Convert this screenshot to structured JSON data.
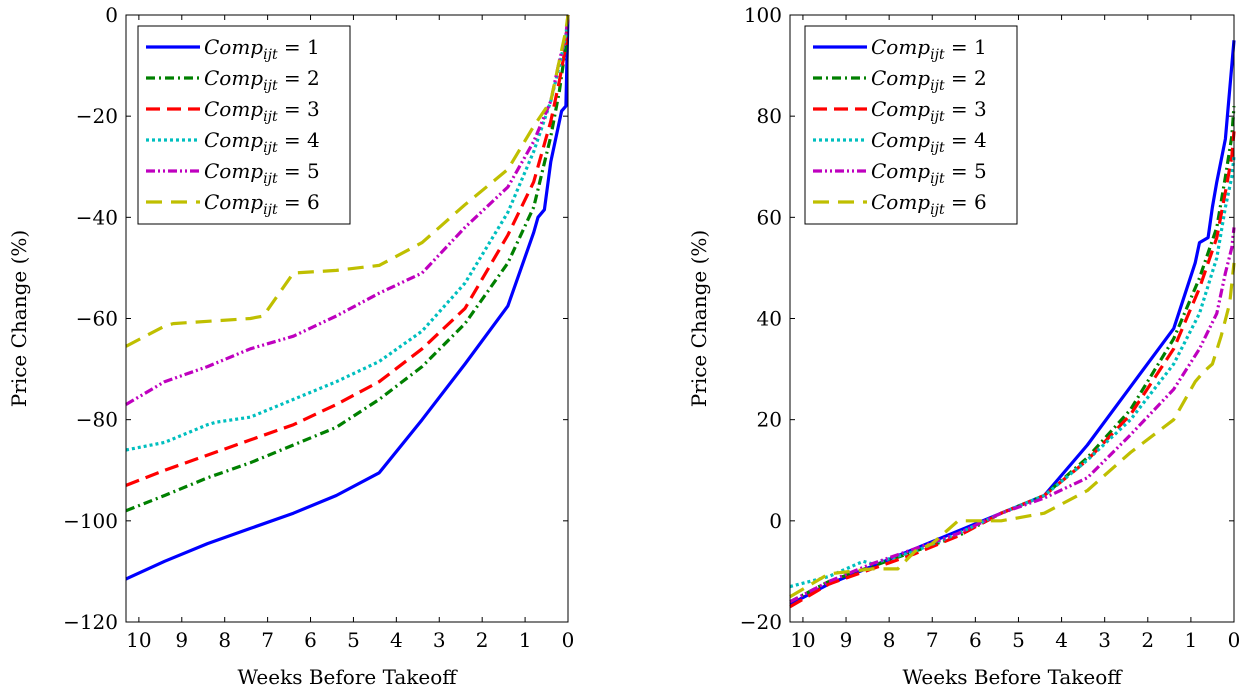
{
  "chart_data": [
    {
      "type": "line",
      "xlabel": "Weeks Before Takeoff",
      "ylabel": "Price Change (%)",
      "xlim": [
        10.3,
        0
      ],
      "ylim": [
        -120,
        0
      ],
      "xticks": [
        10,
        9,
        8,
        7,
        6,
        5,
        4,
        3,
        2,
        1,
        0
      ],
      "yticks": [
        0,
        -20,
        -40,
        -60,
        -80,
        -100,
        -120
      ],
      "legend_position": "top-left",
      "grid": false,
      "series": [
        {
          "name": "Comp_ijt = 1",
          "color": "#0000ff",
          "dash": "solid",
          "x": [
            10.3,
            9.4,
            8.4,
            7.4,
            6.4,
            5.4,
            4.4,
            3.4,
            2.4,
            1.4,
            0.8,
            0.7,
            0.55,
            0.4,
            0.15,
            0.05,
            0
          ],
          "y": [
            -111.5,
            -108,
            -104.5,
            -101.5,
            -98.5,
            -95,
            -90.5,
            -80,
            -69,
            -57.5,
            -43,
            -40,
            -38.5,
            -29,
            -19,
            -18,
            0
          ]
        },
        {
          "name": "Comp_ijt = 2",
          "color": "#008000",
          "dash": "dashdot",
          "x": [
            10.3,
            9.4,
            8.4,
            7.4,
            6.4,
            5.4,
            4.4,
            3.4,
            2.4,
            1.4,
            0.8,
            0.4,
            0.2,
            0.05,
            0
          ],
          "y": [
            -98,
            -95,
            -91.5,
            -88.5,
            -85,
            -81.5,
            -76,
            -69.5,
            -61,
            -49,
            -38,
            -24,
            -15,
            -6,
            0
          ]
        },
        {
          "name": "Comp_ijt = 3",
          "color": "#ff0000",
          "dash": "dashed",
          "x": [
            10.3,
            9.4,
            8.4,
            7.4,
            6.4,
            5.4,
            4.4,
            3.4,
            2.4,
            1.4,
            0.8,
            0.4,
            0.2,
            0.05,
            0
          ],
          "y": [
            -93,
            -90,
            -87,
            -84,
            -81,
            -77,
            -72.5,
            -66,
            -58,
            -43.5,
            -33,
            -21,
            -13,
            -6,
            0
          ]
        },
        {
          "name": "Comp_ijt = 4",
          "color": "#00bfbf",
          "dash": "dotted",
          "x": [
            10.3,
            9.4,
            8.4,
            8.2,
            7.4,
            6.4,
            5.4,
            4.4,
            3.4,
            2.4,
            1.4,
            0.8,
            0.4,
            0.2,
            0.05,
            0
          ],
          "y": [
            -86,
            -84.5,
            -81,
            -80.5,
            -79.5,
            -76,
            -72.5,
            -68.5,
            -62.5,
            -53,
            -39,
            -27,
            -17,
            -10,
            -4,
            0
          ]
        },
        {
          "name": "Comp_ijt = 5",
          "color": "#bf00bf",
          "dash": "dashdotdot",
          "x": [
            10.3,
            9.4,
            8.4,
            7.4,
            6.4,
            5.4,
            4.4,
            3.4,
            2.4,
            1.4,
            0.8,
            0.4,
            0.2,
            0.05,
            0
          ],
          "y": [
            -77,
            -72.5,
            -69.5,
            -66,
            -63.5,
            -59.5,
            -55,
            -51,
            -42,
            -34,
            -25,
            -17,
            -9,
            -4,
            0
          ]
        },
        {
          "name": "Comp_ijt = 6",
          "color": "#bfbf00",
          "dash": "longdash",
          "x": [
            10.3,
            9.4,
            9.2,
            7.4,
            7.1,
            6.4,
            5.4,
            4.4,
            3.4,
            2.4,
            1.4,
            0.8,
            0.4,
            0.2,
            0.05,
            0
          ],
          "y": [
            -65.5,
            -61.5,
            -61,
            -60,
            -59.5,
            -51,
            -50.5,
            -49.5,
            -45,
            -37.5,
            -30.5,
            -22,
            -17,
            -9,
            -3,
            0
          ]
        }
      ]
    },
    {
      "type": "line",
      "xlabel": "Weeks Before Takeoff",
      "ylabel": "Price Change (%)",
      "xlim": [
        10.3,
        0
      ],
      "ylim": [
        -20,
        100
      ],
      "xticks": [
        10,
        9,
        8,
        7,
        6,
        5,
        4,
        3,
        2,
        1,
        0
      ],
      "yticks": [
        100,
        80,
        60,
        40,
        20,
        0,
        -20
      ],
      "legend_position": "top-left",
      "grid": false,
      "series": [
        {
          "name": "Comp_ijt = 1",
          "color": "#0000ff",
          "dash": "solid",
          "x": [
            10.3,
            9.4,
            8.4,
            7.4,
            6.4,
            5.4,
            4.4,
            3.4,
            2.4,
            1.4,
            0.9,
            0.8,
            0.6,
            0.5,
            0.4,
            0.2,
            0
          ],
          "y": [
            -16.5,
            -12.5,
            -9,
            -5.5,
            -2,
            1.5,
            5,
            15,
            26.5,
            38,
            51,
            55,
            56,
            62,
            67,
            75.5,
            95
          ]
        },
        {
          "name": "Comp_ijt = 2",
          "color": "#008000",
          "dash": "dashdot",
          "x": [
            10.3,
            9.4,
            8.4,
            7.4,
            6.4,
            5.4,
            4.4,
            3.4,
            2.4,
            1.4,
            0.8,
            0.4,
            0.2,
            0.05,
            0
          ],
          "y": [
            -16,
            -12,
            -9,
            -6,
            -3,
            1.5,
            5,
            12.5,
            22,
            36,
            48,
            58,
            68,
            76,
            82
          ]
        },
        {
          "name": "Comp_ijt = 3",
          "color": "#ff0000",
          "dash": "dashed",
          "x": [
            10.3,
            9.4,
            8.4,
            7.4,
            6.4,
            5.4,
            4.4,
            3.4,
            2.4,
            1.4,
            0.8,
            0.4,
            0.2,
            0.05,
            0
          ],
          "y": [
            -17,
            -12.5,
            -9.5,
            -6.5,
            -3,
            1.5,
            5,
            12,
            21,
            34,
            46,
            56,
            65,
            72,
            77
          ]
        },
        {
          "name": "Comp_ijt = 4",
          "color": "#00bfbf",
          "dash": "dotted",
          "x": [
            10.3,
            9.4,
            8.6,
            8.4,
            7.4,
            6.4,
            5.4,
            4.4,
            3.4,
            2.4,
            1.4,
            0.8,
            0.4,
            0.2,
            0.05,
            0
          ],
          "y": [
            -13,
            -11,
            -8,
            -8.5,
            -6,
            -2.5,
            1.5,
            5,
            12,
            20,
            31,
            41,
            52,
            62,
            68,
            72
          ]
        },
        {
          "name": "Comp_ijt = 5",
          "color": "#bf00bf",
          "dash": "dashdotdot",
          "x": [
            10.3,
            9.4,
            8.4,
            7.4,
            6.4,
            5.4,
            4.4,
            3.4,
            2.4,
            1.4,
            0.8,
            0.4,
            0.2,
            0.05,
            0
          ],
          "y": [
            -16,
            -12,
            -8.5,
            -5.5,
            -2.5,
            1.5,
            4.5,
            8.5,
            17,
            26,
            34,
            41,
            49,
            54,
            58
          ]
        },
        {
          "name": "Comp_ijt = 6",
          "color": "#bfbf00",
          "dash": "longdash",
          "x": [
            10.3,
            9.4,
            8.4,
            7.8,
            7.4,
            7.0,
            6.4,
            5.4,
            4.4,
            3.4,
            2.4,
            1.4,
            0.9,
            0.7,
            0.5,
            0.3,
            0.1,
            0
          ],
          "y": [
            -15,
            -10.5,
            -9.5,
            -9.5,
            -6,
            -4.5,
            0,
            0,
            1.5,
            6,
            13.5,
            20,
            27.5,
            29.5,
            31,
            36.5,
            43,
            51
          ]
        }
      ]
    }
  ]
}
